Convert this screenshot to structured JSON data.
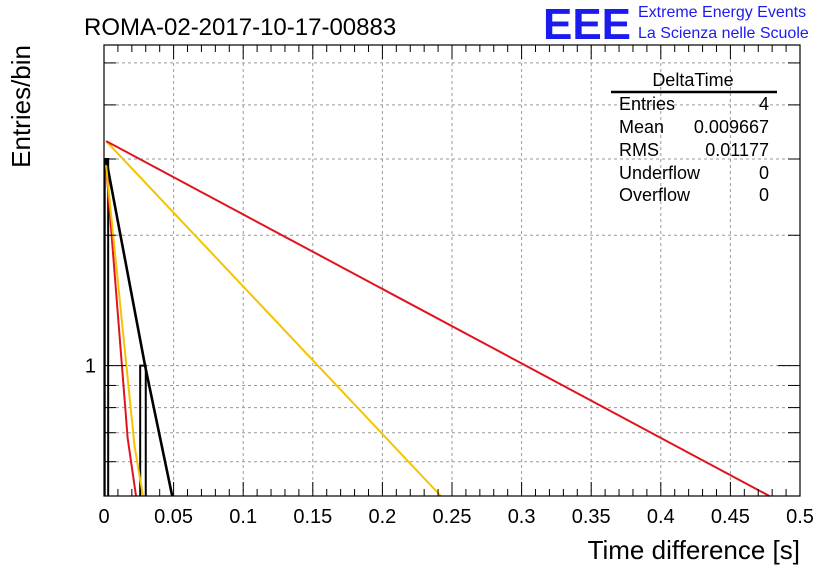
{
  "header": {
    "run_title": "ROMA-02-2017-10-17-00883",
    "logo_letters": "EEE",
    "logo_line1": "Extreme Energy Events",
    "logo_line2": "La Scienza nelle Scuole"
  },
  "stats": {
    "title": "DeltaTime",
    "rows": [
      {
        "label": "Entries",
        "value": "4"
      },
      {
        "label": "Mean",
        "value": "0.009667"
      },
      {
        "label": "RMS",
        "value": "0.01177"
      },
      {
        "label": "Underflow",
        "value": "0"
      },
      {
        "label": "Overflow",
        "value": "0"
      }
    ]
  },
  "colors": {
    "histogram": "#000000",
    "fit_black": "#000000",
    "fit_red": "#e0141e",
    "fit_yellow": "#f5c400",
    "grid": "#9a9a9a",
    "logo": "#1b1bf0"
  },
  "chart_data": {
    "type": "histogram",
    "xlabel": "Time difference [s]",
    "ylabel": "Entries/bin",
    "xlim": [
      0,
      0.5
    ],
    "ylim": [
      0.5,
      5.5
    ],
    "yscale": "log",
    "grid": true,
    "x_ticks": [
      "0",
      "0.05",
      "0.1",
      "0.15",
      "0.2",
      "0.25",
      "0.3",
      "0.35",
      "0.4",
      "0.45",
      "0.5"
    ],
    "y_ticks": [
      "1"
    ],
    "bins": [
      {
        "x0": 0.0005,
        "x1": 0.003,
        "value": 3
      },
      {
        "x0": 0.026,
        "x1": 0.03,
        "value": 1
      }
    ],
    "fit_lines": [
      {
        "color_key": "fit_black",
        "points": [
          [
            0.0015,
            3.0
          ],
          [
            0.0295,
            1.0
          ],
          [
            0.049,
            0.5
          ]
        ]
      },
      {
        "color_key": "fit_red",
        "points": [
          [
            0.0015,
            2.9
          ],
          [
            0.017,
            0.68
          ],
          [
            0.023,
            0.5
          ]
        ]
      },
      {
        "color_key": "fit_yellow",
        "points": [
          [
            0.0015,
            2.9
          ],
          [
            0.022,
            0.65
          ],
          [
            0.028,
            0.5
          ]
        ]
      },
      {
        "color_key": "fit_yellow",
        "points": [
          [
            0.0015,
            3.3
          ],
          [
            0.242,
            0.5
          ]
        ]
      },
      {
        "color_key": "fit_red",
        "points": [
          [
            0.0015,
            3.3
          ],
          [
            0.478,
            0.5
          ]
        ]
      }
    ]
  }
}
